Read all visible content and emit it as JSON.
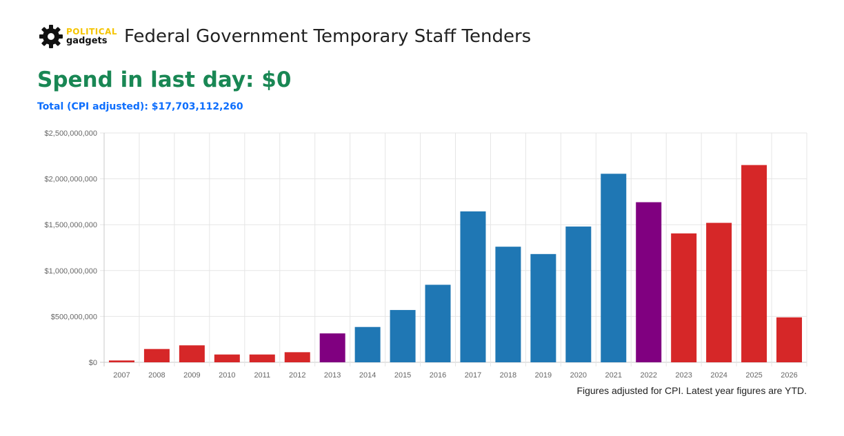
{
  "brand": {
    "logo_top": "POLITICAL",
    "logo_bottom": "gadgets"
  },
  "header": {
    "title": "Federal Government Temporary Staff Tenders"
  },
  "summary": {
    "spend_last_day": "Spend in last day: $0",
    "total_cpi": "Total (CPI adjusted): $17,703,112,260"
  },
  "footnote": "Figures adjusted for CPI. Latest year figures are YTD.",
  "colors": {
    "red": "#d62728",
    "blue": "#1f77b4",
    "purple": "#800080",
    "spend_green": "#198754",
    "total_blue": "#0d6efd"
  },
  "chart_data": {
    "type": "bar",
    "categories": [
      "2007",
      "2008",
      "2009",
      "2010",
      "2011",
      "2012",
      "2013",
      "2014",
      "2015",
      "2016",
      "2017",
      "2018",
      "2019",
      "2020",
      "2021",
      "2022",
      "2023",
      "2024",
      "2025",
      "2026"
    ],
    "values": [
      20000000,
      145000000,
      185000000,
      85000000,
      85000000,
      110000000,
      315000000,
      385000000,
      570000000,
      845000000,
      1645000000,
      1260000000,
      1180000000,
      1480000000,
      2055000000,
      1745000000,
      1405000000,
      1520000000,
      2150000000,
      490000000
    ],
    "bar_colors": [
      "#d62728",
      "#d62728",
      "#d62728",
      "#d62728",
      "#d62728",
      "#d62728",
      "#800080",
      "#1f77b4",
      "#1f77b4",
      "#1f77b4",
      "#1f77b4",
      "#1f77b4",
      "#1f77b4",
      "#1f77b4",
      "#1f77b4",
      "#800080",
      "#d62728",
      "#d62728",
      "#d62728",
      "#d62728"
    ],
    "ylim": [
      0,
      2500000000
    ],
    "yticks": [
      0,
      500000000,
      1000000000,
      1500000000,
      2000000000,
      2500000000
    ],
    "ytick_labels": [
      "$0",
      "$500,000,000",
      "$1,000,000,000",
      "$1,500,000,000",
      "$2,000,000,000",
      "$2,500,000,000"
    ],
    "grid": true,
    "title": "",
    "xlabel": "",
    "ylabel": ""
  }
}
